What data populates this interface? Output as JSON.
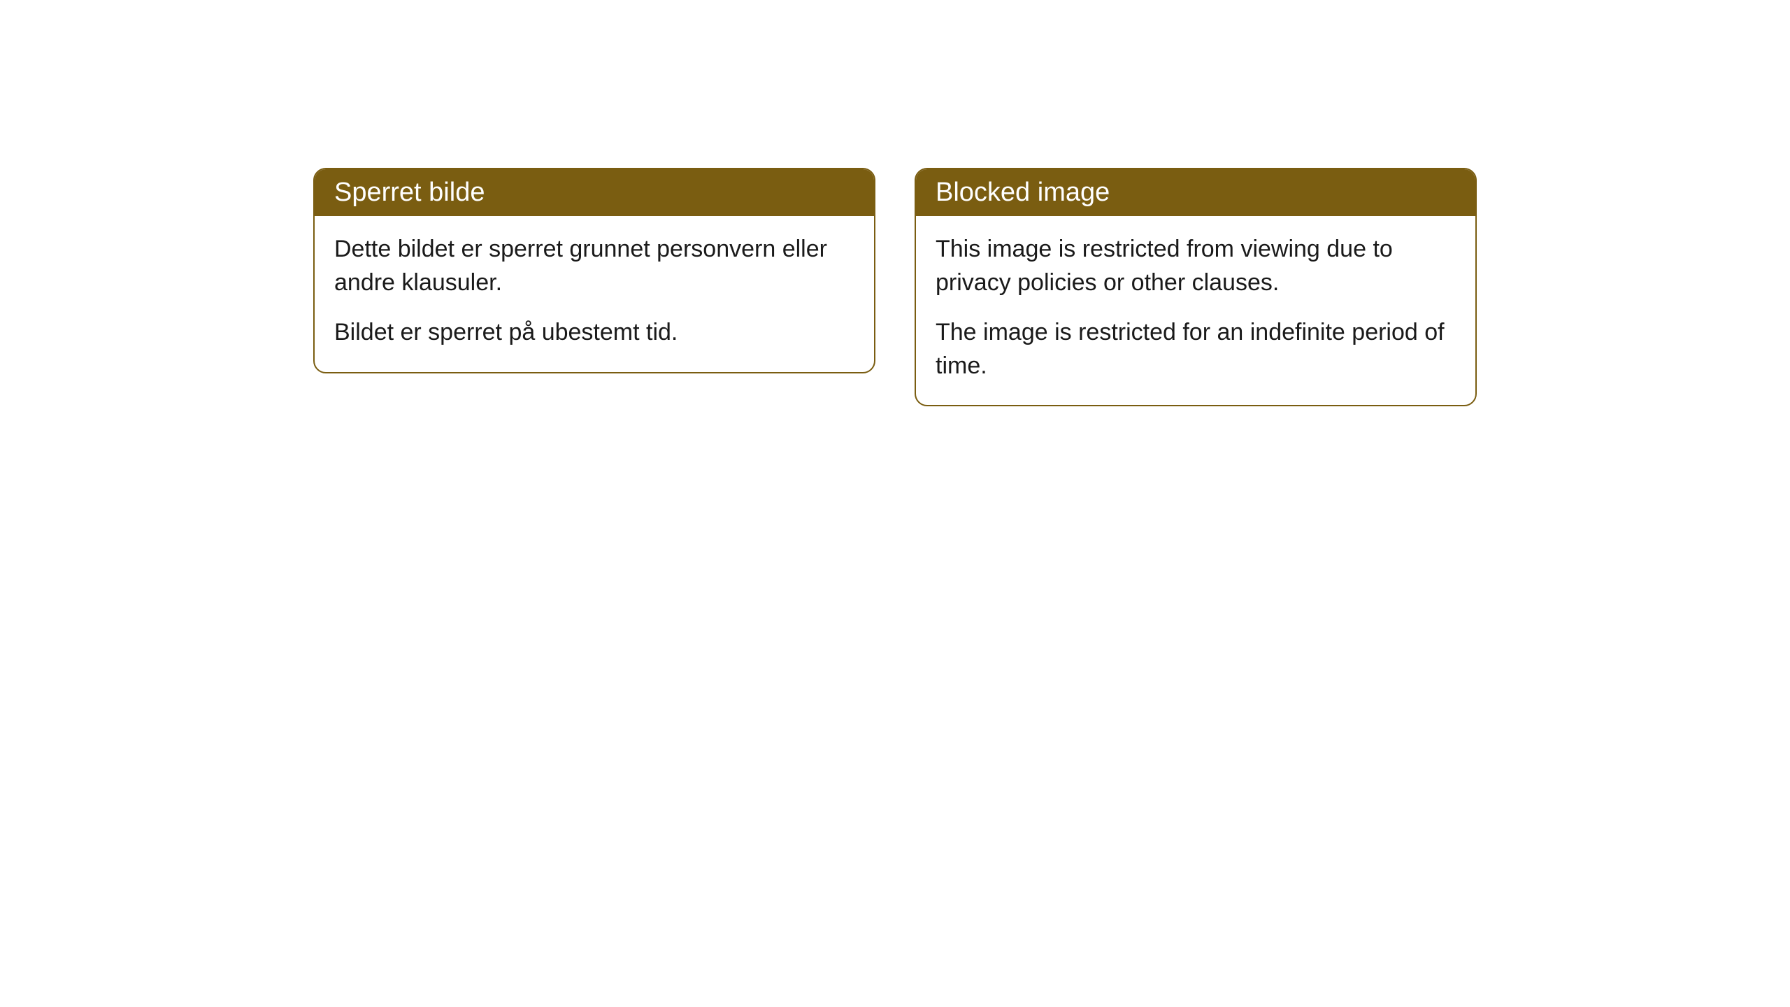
{
  "cards": [
    {
      "title": "Sperret bilde",
      "para1": "Dette bildet er sperret grunnet personvern eller andre klausuler.",
      "para2": "Bildet er sperret på ubestemt tid."
    },
    {
      "title": "Blocked image",
      "para1": "This image is restricted from viewing due to privacy policies or other clauses.",
      "para2": "The image is restricted for an indefinite period of time."
    }
  ],
  "style": {
    "header_bg": "#7a5d11",
    "header_text_color": "#ffffff",
    "border_color": "#7a5d11",
    "body_text_color": "#1a1a1a",
    "background_color": "#ffffff",
    "border_radius": 18,
    "header_fontsize": 38,
    "body_fontsize": 34
  }
}
